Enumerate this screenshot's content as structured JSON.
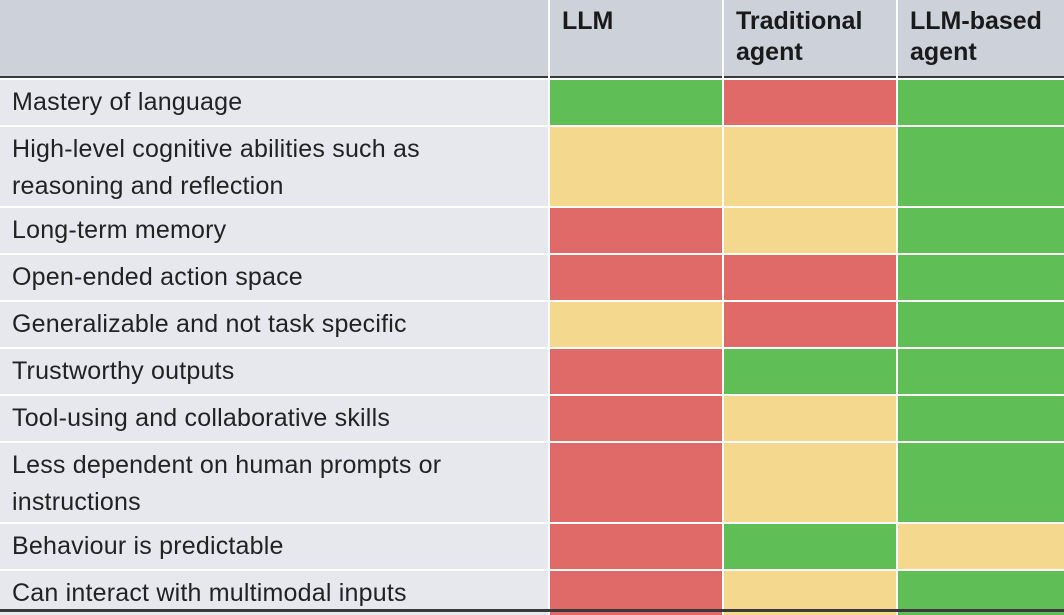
{
  "columns": [
    "LLM",
    "Traditional\nagent",
    "LLM-based\nagent"
  ],
  "legend_colors": {
    "green": "#5fbe55",
    "red": "#df6a67",
    "yellow": "#f4d88e"
  },
  "rows": [
    {
      "label": "Mastery of language",
      "ratings": [
        "green",
        "red",
        "green"
      ]
    },
    {
      "label": "High-level cognitive abilities such as reasoning and reflection",
      "ratings": [
        "yellow",
        "yellow",
        "green"
      ]
    },
    {
      "label": "Long-term memory",
      "ratings": [
        "red",
        "yellow",
        "green"
      ]
    },
    {
      "label": "Open-ended action space",
      "ratings": [
        "red",
        "red",
        "green"
      ]
    },
    {
      "label": "Generalizable and not task specific",
      "ratings": [
        "yellow",
        "red",
        "green"
      ]
    },
    {
      "label": "Trustworthy outputs",
      "ratings": [
        "red",
        "green",
        "green"
      ]
    },
    {
      "label": "Tool-using and collaborative skills",
      "ratings": [
        "red",
        "yellow",
        "green"
      ]
    },
    {
      "label": "Less dependent on human prompts or instructions",
      "ratings": [
        "red",
        "yellow",
        "green"
      ]
    },
    {
      "label": "Behaviour is predictable",
      "ratings": [
        "red",
        "green",
        "yellow"
      ]
    },
    {
      "label": "Can interact with multimodal inputs",
      "ratings": [
        "red",
        "yellow",
        "green"
      ]
    }
  ]
}
